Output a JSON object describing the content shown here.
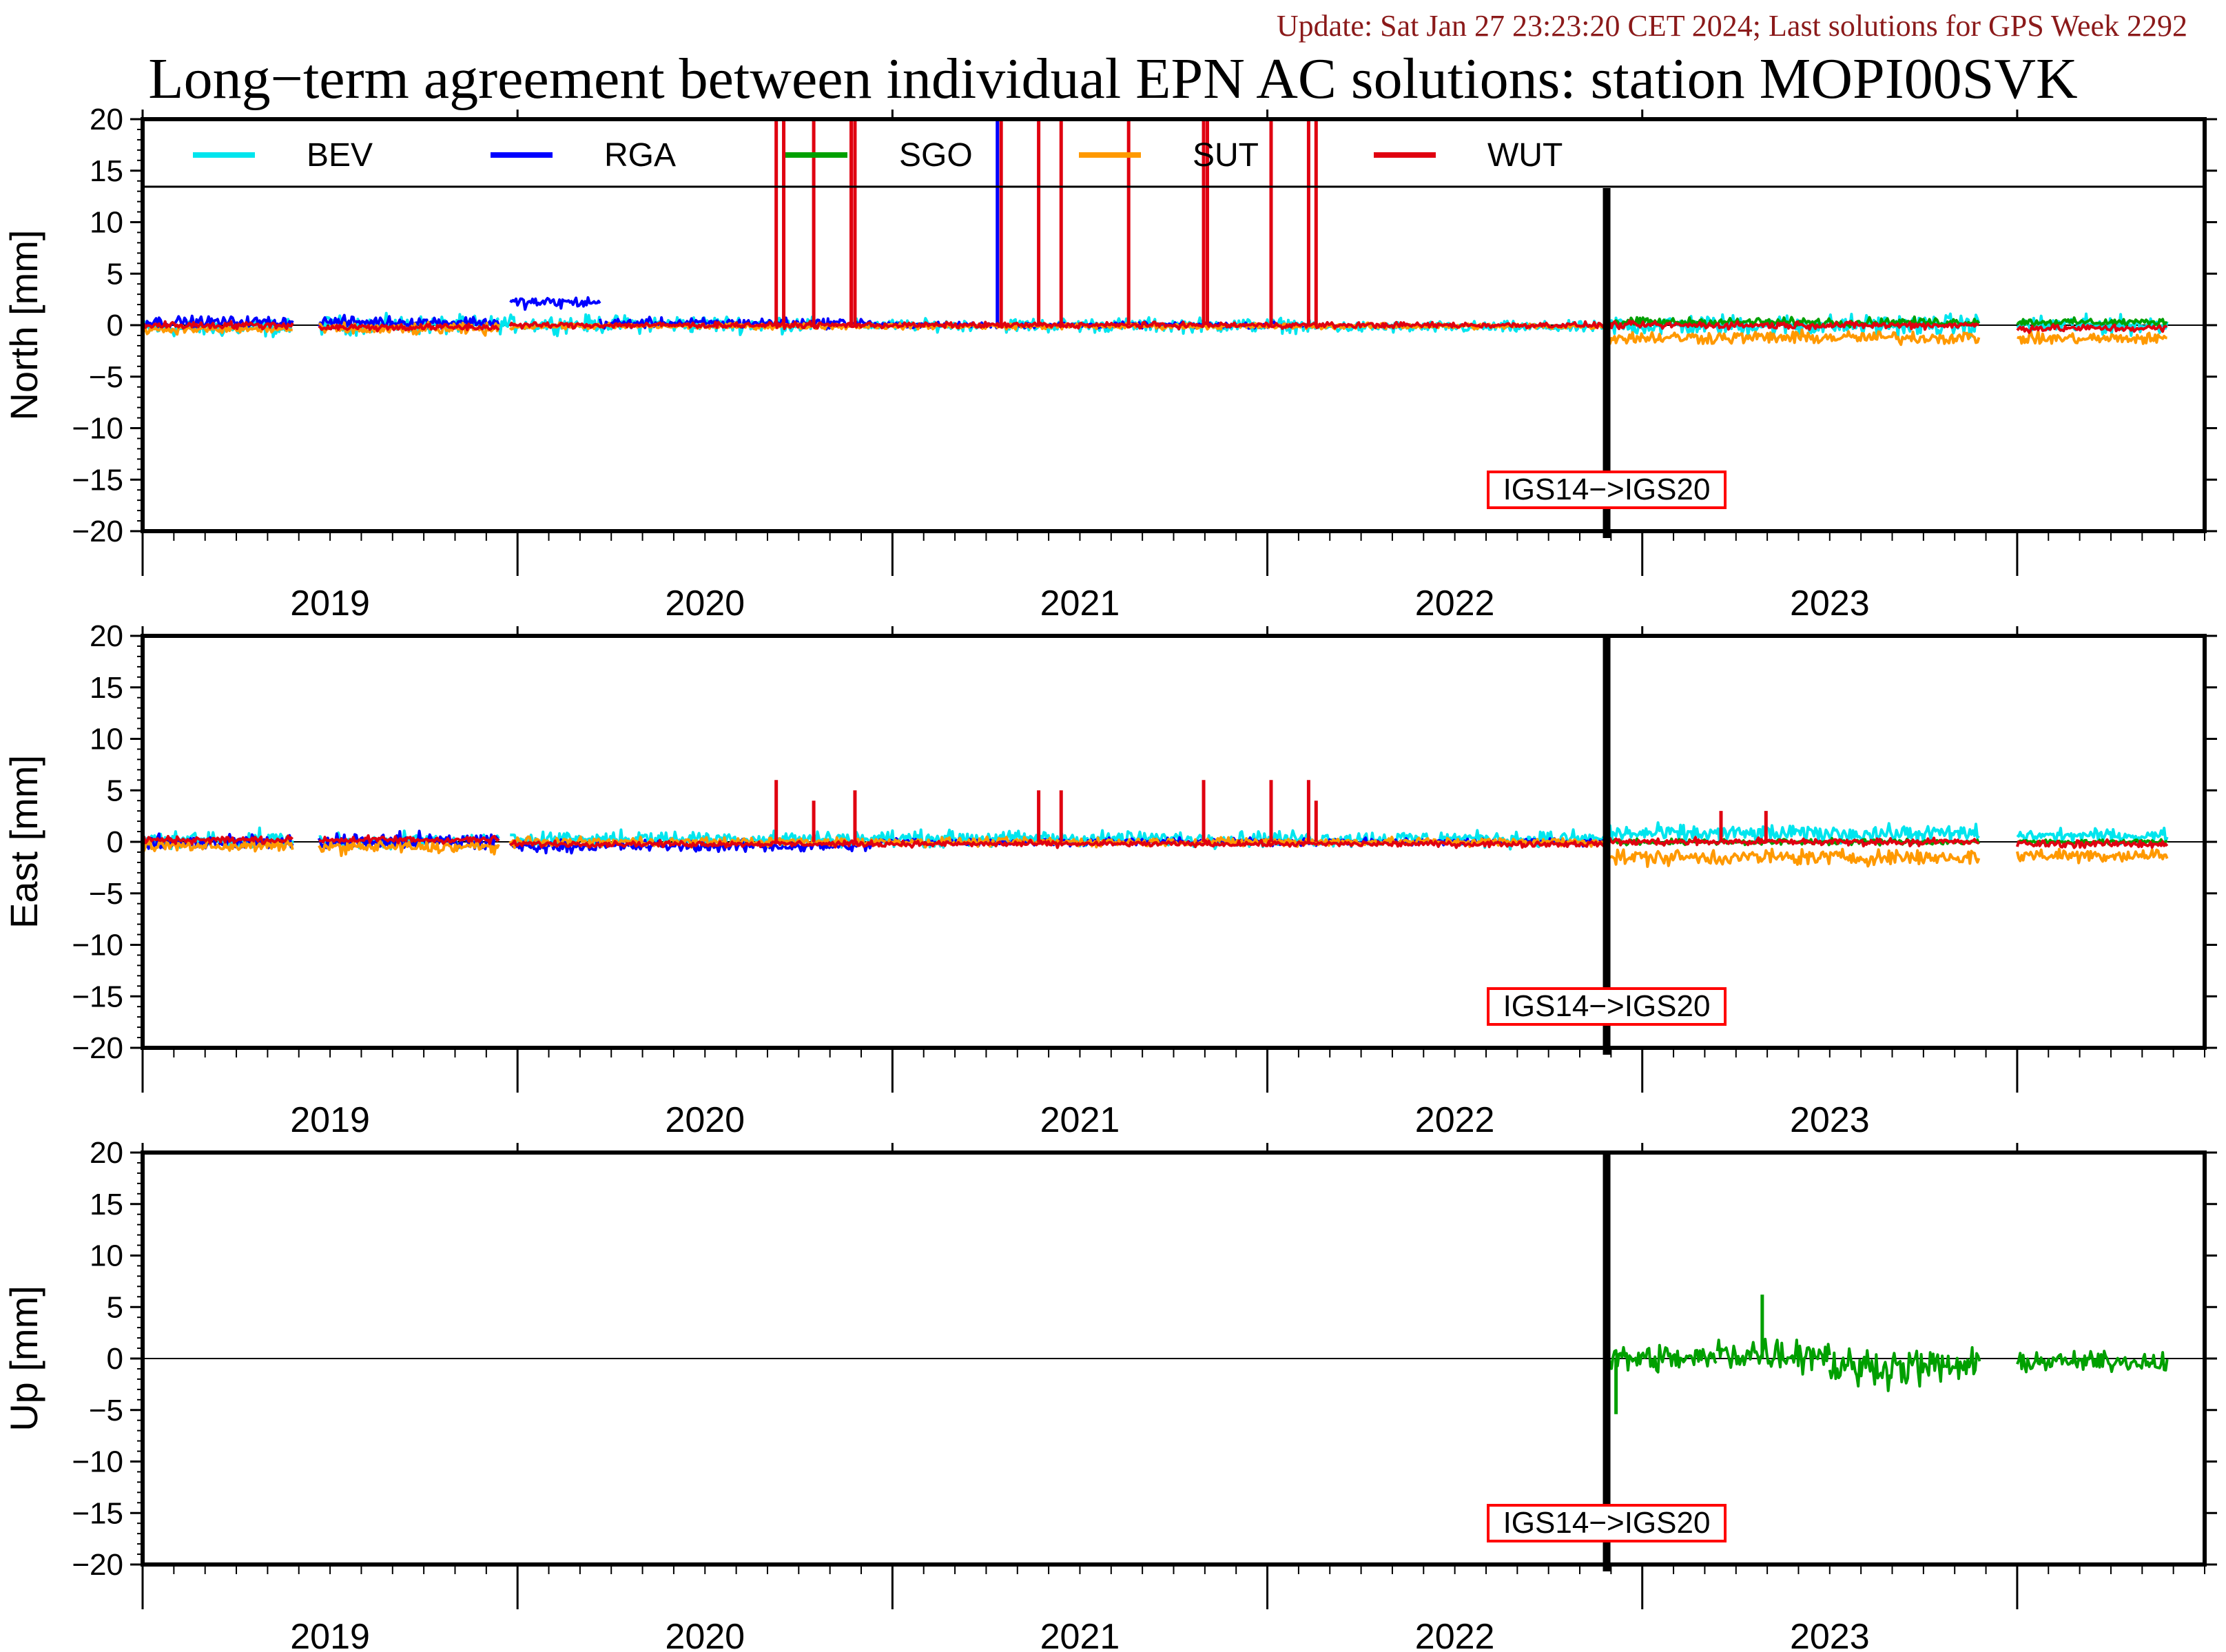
{
  "header": {
    "update_text": "Update: Sat Jan 27 23:23:20 CET 2024; Last solutions for GPS Week 2292"
  },
  "chart_data": {
    "type": "line",
    "title": "Long−term agreement between individual EPN AC solutions: station MOPI00SVK",
    "x_tick_labels": [
      "2019",
      "2020",
      "2021",
      "2022",
      "2023"
    ],
    "x_range": [
      2018.5,
      2024.0
    ],
    "frame_change": {
      "x": 2022.405,
      "label": "IGS14−>IGS20"
    },
    "legend": {
      "position": "top",
      "entries": [
        {
          "name": "BEV",
          "color": "#00e5ee"
        },
        {
          "name": "RGA",
          "color": "#0000ff"
        },
        {
          "name": "SGO",
          "color": "#00a000"
        },
        {
          "name": "SUT",
          "color": "#ff9900"
        },
        {
          "name": "WUT",
          "color": "#e00010"
        }
      ]
    },
    "panels": [
      {
        "ylabel": "North [mm]",
        "ylim": [
          -20,
          20
        ],
        "yticks": [
          20,
          15,
          10,
          5,
          0,
          -5,
          -10,
          -15,
          -20
        ],
        "series": [
          {
            "name": "BEV",
            "segments": [
              {
                "start": 2018.5,
                "end": 2018.9,
                "mean": -0.3,
                "amp": 1.2
              },
              {
                "start": 2018.97,
                "end": 2019.45,
                "mean": 0.0,
                "amp": 1.3
              },
              {
                "start": 2019.45,
                "end": 2020.3,
                "mean": 0.1,
                "amp": 1.2
              },
              {
                "start": 2020.4,
                "end": 2020.75,
                "mean": 0.0,
                "amp": 0.8
              },
              {
                "start": 2020.8,
                "end": 2021.6,
                "mean": 0.0,
                "amp": 1.0
              },
              {
                "start": 2021.6,
                "end": 2022.4,
                "mean": -0.2,
                "amp": 0.8
              },
              {
                "start": 2022.41,
                "end": 2023.4,
                "mean": 0.0,
                "amp": 1.5
              },
              {
                "start": 2023.5,
                "end": 2023.9,
                "mean": 0.0,
                "amp": 1.3
              }
            ]
          },
          {
            "name": "RGA",
            "segments": [
              {
                "start": 2018.5,
                "end": 2018.9,
                "mean": 0.3,
                "amp": 0.8
              },
              {
                "start": 2018.97,
                "end": 2019.45,
                "mean": 0.3,
                "amp": 0.8
              },
              {
                "start": 2019.48,
                "end": 2019.72,
                "mean": 2.2,
                "amp": 0.8
              },
              {
                "start": 2019.72,
                "end": 2020.45,
                "mean": 0.2,
                "amp": 0.7
              },
              {
                "start": 2020.45,
                "end": 2021.6,
                "mean": 0.0,
                "amp": 0.4
              }
            ],
            "spikes": [
              {
                "x": 2020.78,
                "y": 20
              }
            ]
          },
          {
            "name": "SGO",
            "segments": [
              {
                "start": 2022.41,
                "end": 2023.4,
                "mean": 0.3,
                "amp": 0.6
              },
              {
                "start": 2023.5,
                "end": 2023.9,
                "mean": 0.3,
                "amp": 0.5
              }
            ]
          },
          {
            "name": "SUT",
            "segments": [
              {
                "start": 2018.5,
                "end": 2018.9,
                "mean": -0.4,
                "amp": 0.6
              },
              {
                "start": 2018.97,
                "end": 2019.45,
                "mean": -0.4,
                "amp": 0.8
              },
              {
                "start": 2019.48,
                "end": 2022.4,
                "mean": -0.1,
                "amp": 0.4
              },
              {
                "start": 2022.41,
                "end": 2023.4,
                "mean": -1.2,
                "amp": 0.9
              },
              {
                "start": 2023.5,
                "end": 2023.9,
                "mean": -1.3,
                "amp": 0.8
              }
            ]
          },
          {
            "name": "WUT",
            "segments": [
              {
                "start": 2018.5,
                "end": 2018.9,
                "mean": 0.0,
                "amp": 0.5
              },
              {
                "start": 2018.97,
                "end": 2019.45,
                "mean": -0.2,
                "amp": 0.5
              },
              {
                "start": 2019.48,
                "end": 2022.4,
                "mean": 0.0,
                "amp": 0.4
              },
              {
                "start": 2022.41,
                "end": 2023.4,
                "mean": 0.0,
                "amp": 0.5
              },
              {
                "start": 2023.5,
                "end": 2023.9,
                "mean": -0.3,
                "amp": 0.5
              }
            ],
            "spikes": [
              {
                "x": 2020.19,
                "y": 20
              },
              {
                "x": 2020.21,
                "y": 20
              },
              {
                "x": 2020.29,
                "y": 20
              },
              {
                "x": 2020.39,
                "y": 20
              },
              {
                "x": 2020.4,
                "y": 20
              },
              {
                "x": 2020.79,
                "y": 20
              },
              {
                "x": 2020.89,
                "y": 20
              },
              {
                "x": 2020.95,
                "y": 20
              },
              {
                "x": 2021.13,
                "y": 20
              },
              {
                "x": 2021.33,
                "y": 20
              },
              {
                "x": 2021.34,
                "y": 20
              },
              {
                "x": 2021.51,
                "y": 20
              },
              {
                "x": 2021.61,
                "y": 20
              },
              {
                "x": 2021.63,
                "y": 20
              }
            ]
          }
        ]
      },
      {
        "ylabel": "East [mm]",
        "ylim": [
          -20,
          20
        ],
        "yticks": [
          20,
          15,
          10,
          5,
          0,
          -5,
          -10,
          -15,
          -20
        ],
        "series": [
          {
            "name": "BEV",
            "segments": [
              {
                "start": 2018.5,
                "end": 2018.9,
                "mean": 0.2,
                "amp": 1.2
              },
              {
                "start": 2018.97,
                "end": 2019.45,
                "mean": 0.1,
                "amp": 1.0
              },
              {
                "start": 2019.48,
                "end": 2022.4,
                "mean": 0.3,
                "amp": 1.1
              },
              {
                "start": 2022.41,
                "end": 2023.4,
                "mean": 0.8,
                "amp": 1.2
              },
              {
                "start": 2023.5,
                "end": 2023.9,
                "mean": 0.6,
                "amp": 0.9
              }
            ]
          },
          {
            "name": "RGA",
            "segments": [
              {
                "start": 2018.5,
                "end": 2018.9,
                "mean": 0.0,
                "amp": 1.0
              },
              {
                "start": 2018.97,
                "end": 2019.45,
                "mean": 0.0,
                "amp": 1.3
              },
              {
                "start": 2019.48,
                "end": 2020.45,
                "mean": -0.4,
                "amp": 0.8
              },
              {
                "start": 2020.45,
                "end": 2022.4,
                "mean": 0.0,
                "amp": 0.5
              }
            ]
          },
          {
            "name": "SGO",
            "segments": [
              {
                "start": 2022.41,
                "end": 2023.4,
                "mean": 0.0,
                "amp": 0.4
              },
              {
                "start": 2023.5,
                "end": 2023.9,
                "mean": 0.0,
                "amp": 0.3
              }
            ]
          },
          {
            "name": "SUT",
            "segments": [
              {
                "start": 2018.5,
                "end": 2018.9,
                "mean": -0.4,
                "amp": 0.8
              },
              {
                "start": 2018.97,
                "end": 2019.45,
                "mean": -0.5,
                "amp": 0.9
              },
              {
                "start": 2019.48,
                "end": 2022.4,
                "mean": 0.0,
                "amp": 0.6
              },
              {
                "start": 2022.41,
                "end": 2023.4,
                "mean": -1.5,
                "amp": 1.1
              },
              {
                "start": 2023.5,
                "end": 2023.9,
                "mean": -1.3,
                "amp": 1.0
              }
            ]
          },
          {
            "name": "WUT",
            "segments": [
              {
                "start": 2018.5,
                "end": 2018.9,
                "mean": 0.2,
                "amp": 0.5
              },
              {
                "start": 2018.97,
                "end": 2019.45,
                "mean": 0.2,
                "amp": 0.5
              },
              {
                "start": 2019.48,
                "end": 2022.4,
                "mean": -0.2,
                "amp": 0.4
              },
              {
                "start": 2022.41,
                "end": 2023.4,
                "mean": 0.0,
                "amp": 0.5
              },
              {
                "start": 2023.5,
                "end": 2023.9,
                "mean": -0.2,
                "amp": 0.5
              }
            ],
            "spikes": [
              {
                "x": 2020.19,
                "y": 6
              },
              {
                "x": 2020.29,
                "y": 4
              },
              {
                "x": 2020.4,
                "y": 5
              },
              {
                "x": 2020.89,
                "y": 5
              },
              {
                "x": 2020.95,
                "y": 5
              },
              {
                "x": 2021.33,
                "y": 6
              },
              {
                "x": 2021.51,
                "y": 6
              },
              {
                "x": 2021.61,
                "y": 6
              },
              {
                "x": 2021.63,
                "y": 4
              },
              {
                "x": 2022.71,
                "y": 3
              },
              {
                "x": 2022.83,
                "y": 3
              }
            ]
          }
        ]
      },
      {
        "ylabel": "Up [mm]",
        "ylim": [
          -20,
          20
        ],
        "yticks": [
          20,
          15,
          10,
          5,
          0,
          -5,
          -10,
          -15,
          -20
        ],
        "series": [
          {
            "name": "SGO",
            "segments": [
              {
                "start": 2022.41,
                "end": 2022.7,
                "mean": 0.0,
                "amp": 2.0
              },
              {
                "start": 2022.7,
                "end": 2023.0,
                "mean": 0.5,
                "amp": 2.5
              },
              {
                "start": 2023.0,
                "end": 2023.4,
                "mean": -0.8,
                "amp": 2.5
              },
              {
                "start": 2023.5,
                "end": 2023.9,
                "mean": -0.3,
                "amp": 1.3
              }
            ],
            "spikes": [
              {
                "x": 2022.43,
                "y": -5.4
              },
              {
                "x": 2022.82,
                "y": 6.2
              }
            ]
          }
        ]
      }
    ]
  }
}
